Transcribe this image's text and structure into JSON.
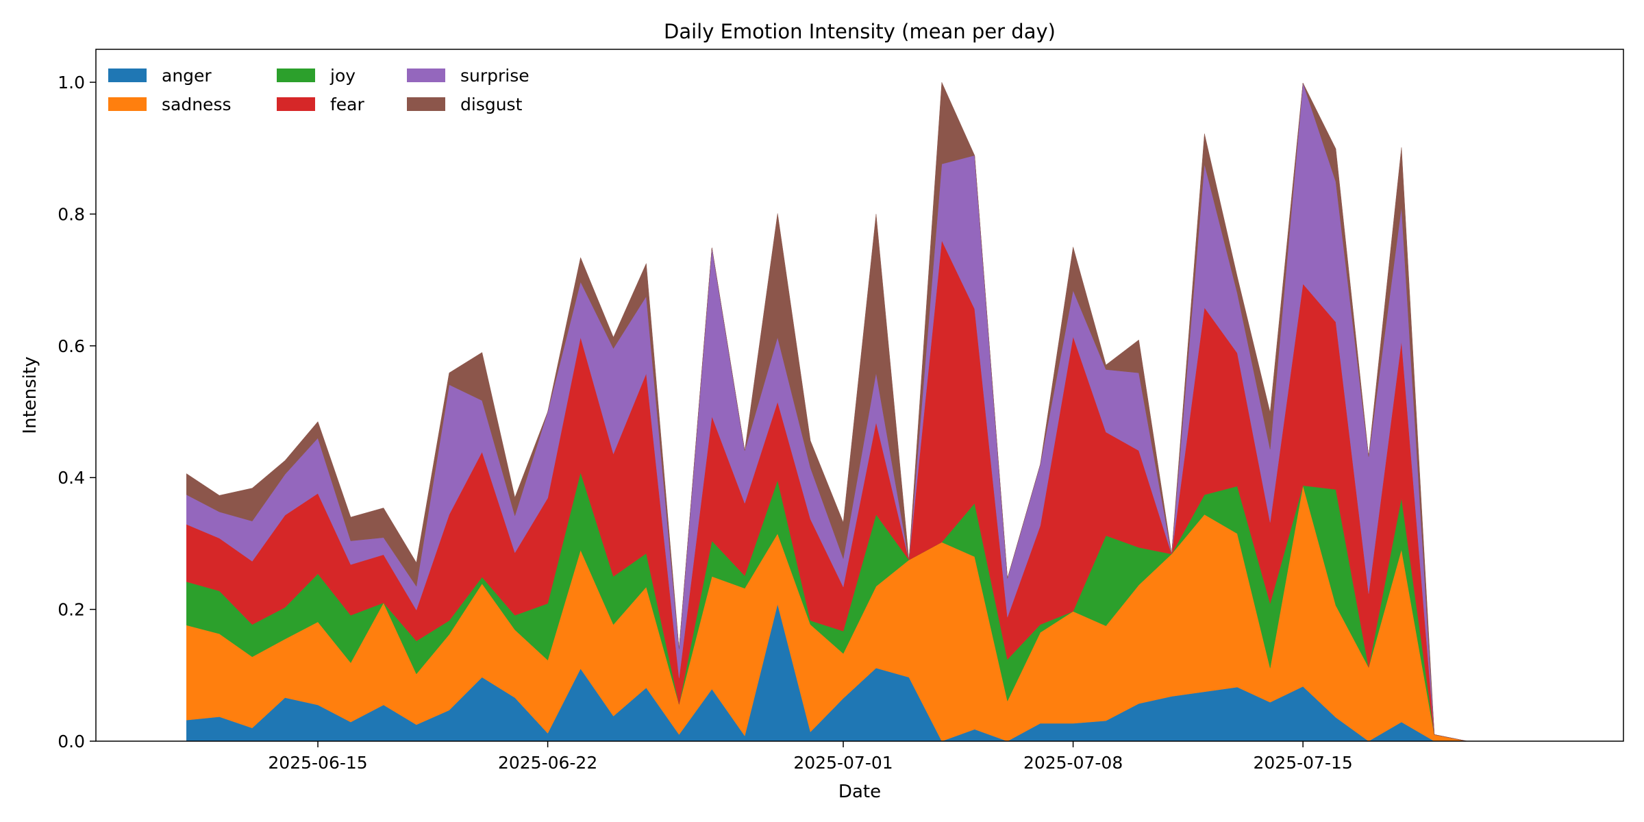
{
  "chart_data": {
    "type": "area",
    "stacked": true,
    "title": "Daily Emotion Intensity (mean per day)",
    "xlabel": "Date",
    "ylabel": "Intensity",
    "x_start": "2025-06-11",
    "x": [
      "2025-06-11",
      "2025-06-12",
      "2025-06-13",
      "2025-06-14",
      "2025-06-15",
      "2025-06-16",
      "2025-06-17",
      "2025-06-18",
      "2025-06-19",
      "2025-06-20",
      "2025-06-21",
      "2025-06-22",
      "2025-06-23",
      "2025-06-24",
      "2025-06-25",
      "2025-06-26",
      "2025-06-27",
      "2025-06-28",
      "2025-06-29",
      "2025-06-30",
      "2025-07-01",
      "2025-07-02",
      "2025-07-03",
      "2025-07-04",
      "2025-07-05",
      "2025-07-06",
      "2025-07-07",
      "2025-07-08",
      "2025-07-09",
      "2025-07-10",
      "2025-07-11",
      "2025-07-12",
      "2025-07-13",
      "2025-07-14",
      "2025-07-15",
      "2025-07-16",
      "2025-07-17",
      "2025-07-18",
      "2025-07-19",
      "2025-07-20",
      "2025-07-21",
      "2025-07-22"
    ],
    "xticks": [
      "2025-06-15",
      "2025-06-22",
      "2025-07-01",
      "2025-07-08",
      "2025-07-15"
    ],
    "ylim": [
      0,
      1.05
    ],
    "yticks": [
      "0.0",
      "0.2",
      "0.4",
      "0.6",
      "0.8",
      "1.0"
    ],
    "legend_position": "top-left",
    "grid": false,
    "series": [
      {
        "name": "anger",
        "color": "#1f77b4",
        "values": [
          0.032,
          0.037,
          0.02,
          0.066,
          0.055,
          0.029,
          0.055,
          0.025,
          0.047,
          0.097,
          0.066,
          0.012,
          0.11,
          0.038,
          0.081,
          0.01,
          0.079,
          0.008,
          0.208,
          0.014,
          0.065,
          0.111,
          0.097,
          0.0,
          0.018,
          0.0,
          0.027,
          0.027,
          0.031,
          0.057,
          0.068,
          0.075,
          0.082,
          0.059,
          0.083,
          0.036,
          0.0,
          0.029,
          0.0,
          0,
          0,
          0
        ]
      },
      {
        "name": "sadness",
        "color": "#ff7f0e",
        "values": [
          0.144,
          0.126,
          0.108,
          0.089,
          0.126,
          0.09,
          0.155,
          0.077,
          0.115,
          0.142,
          0.103,
          0.111,
          0.18,
          0.139,
          0.153,
          0.046,
          0.171,
          0.224,
          0.107,
          0.163,
          0.068,
          0.124,
          0.178,
          0.302,
          0.262,
          0.061,
          0.138,
          0.17,
          0.144,
          0.18,
          0.216,
          0.269,
          0.233,
          0.052,
          0.305,
          0.17,
          0.112,
          0.262,
          0.01,
          0,
          0,
          0
        ]
      },
      {
        "name": "joy",
        "color": "#2ca02c",
        "values": [
          0.066,
          0.065,
          0.049,
          0.048,
          0.073,
          0.072,
          0.0,
          0.05,
          0.021,
          0.01,
          0.022,
          0.086,
          0.118,
          0.073,
          0.051,
          0.0,
          0.054,
          0.019,
          0.081,
          0.006,
          0.034,
          0.109,
          0.0,
          0.0,
          0.081,
          0.063,
          0.012,
          0.0,
          0.137,
          0.057,
          0.0,
          0.03,
          0.072,
          0.098,
          0.0,
          0.176,
          0.0,
          0.078,
          0.0,
          0,
          0,
          0
        ]
      },
      {
        "name": "fear",
        "color": "#d62728",
        "values": [
          0.087,
          0.08,
          0.096,
          0.14,
          0.122,
          0.077,
          0.073,
          0.047,
          0.161,
          0.19,
          0.095,
          0.16,
          0.205,
          0.186,
          0.273,
          0.04,
          0.189,
          0.11,
          0.119,
          0.154,
          0.067,
          0.14,
          0.0,
          0.458,
          0.295,
          0.064,
          0.15,
          0.417,
          0.157,
          0.147,
          0.0,
          0.284,
          0.202,
          0.123,
          0.306,
          0.254,
          0.112,
          0.238,
          0.0,
          0,
          0,
          0
        ]
      },
      {
        "name": "surprise",
        "color": "#9467bd",
        "values": [
          0.045,
          0.04,
          0.061,
          0.062,
          0.084,
          0.036,
          0.026,
          0.036,
          0.197,
          0.078,
          0.056,
          0.131,
          0.084,
          0.16,
          0.117,
          0.044,
          0.256,
          0.08,
          0.098,
          0.078,
          0.043,
          0.075,
          0.0,
          0.116,
          0.233,
          0.059,
          0.093,
          0.07,
          0.095,
          0.118,
          0.0,
          0.218,
          0.091,
          0.111,
          0.305,
          0.213,
          0.208,
          0.204,
          0.0,
          0,
          0,
          0
        ]
      },
      {
        "name": "disgust",
        "color": "#8c564b",
        "values": [
          0.032,
          0.025,
          0.05,
          0.021,
          0.025,
          0.036,
          0.045,
          0.036,
          0.018,
          0.073,
          0.028,
          0.0,
          0.037,
          0.017,
          0.05,
          0.0,
          0.0,
          0.0,
          0.188,
          0.041,
          0.055,
          0.241,
          0.0,
          0.124,
          0.0,
          0.0,
          0.0,
          0.066,
          0.007,
          0.05,
          0.0,
          0.046,
          0.025,
          0.056,
          0.0,
          0.05,
          0.0,
          0.09,
          0.0,
          0,
          0,
          0
        ]
      }
    ]
  }
}
